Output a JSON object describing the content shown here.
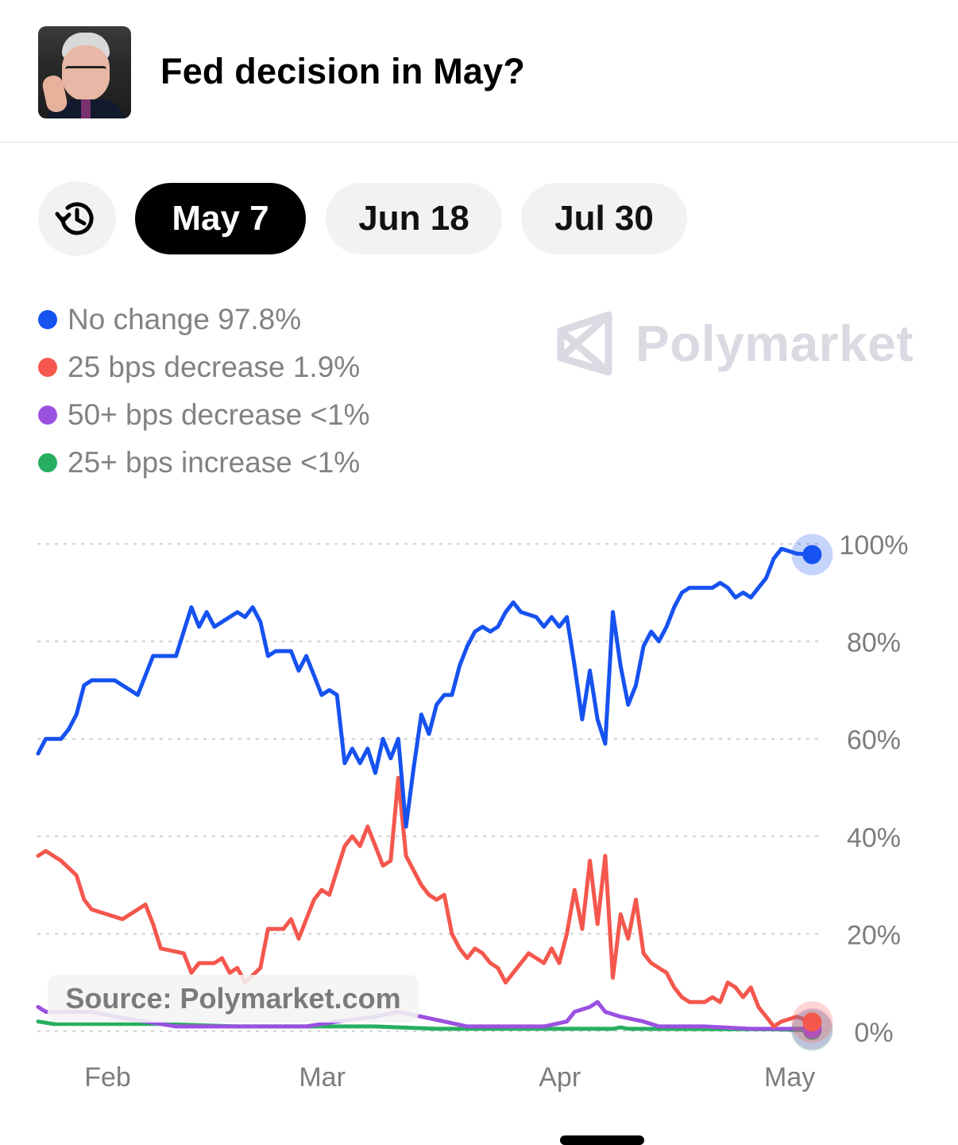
{
  "header": {
    "title": "Fed decision in May?"
  },
  "tabs": [
    {
      "label": "May 7",
      "active": true
    },
    {
      "label": "Jun 18",
      "active": false
    },
    {
      "label": "Jul 30",
      "active": false
    }
  ],
  "icons": {
    "history": "history-clock-icon",
    "watermark": "polymarket-logo-icon"
  },
  "watermark": {
    "text": "Polymarket"
  },
  "source_label": "Source: Polymarket.com",
  "legend": [
    {
      "label": "No change 97.8%",
      "color": "#1652f0"
    },
    {
      "label": "25 bps decrease 1.9%",
      "color": "#f4574d"
    },
    {
      "label": "50+ bps decrease <1%",
      "color": "#9b51e0"
    },
    {
      "label": "25+ bps increase <1%",
      "color": "#27ae60"
    }
  ],
  "chart_data": {
    "type": "line",
    "title": "",
    "xlabel": "",
    "ylabel": "",
    "x_ticks": [
      "Feb",
      "Mar",
      "Apr",
      "May"
    ],
    "x_tick_dates": [
      "2025-02-01",
      "2025-03-01",
      "2025-04-01",
      "2025-05-01"
    ],
    "x_range": [
      "2025-01-25",
      "2025-05-07"
    ],
    "y_ticks": [
      "0%",
      "20%",
      "40%",
      "60%",
      "80%",
      "100%"
    ],
    "y_tick_values": [
      0,
      20,
      40,
      60,
      80,
      100
    ],
    "ylim": [
      0,
      100
    ],
    "grid": "horizontal-dotted",
    "series": [
      {
        "name": "No change",
        "color": "#1652f0",
        "end_value": 97.8,
        "points": [
          [
            "2025-01-25",
            57
          ],
          [
            "2025-01-26",
            60
          ],
          [
            "2025-01-28",
            60
          ],
          [
            "2025-01-29",
            62
          ],
          [
            "2025-01-30",
            65
          ],
          [
            "2025-01-31",
            71
          ],
          [
            "2025-02-01",
            72
          ],
          [
            "2025-02-04",
            72
          ],
          [
            "2025-02-05",
            71
          ],
          [
            "2025-02-06",
            70
          ],
          [
            "2025-02-07",
            69
          ],
          [
            "2025-02-08",
            73
          ],
          [
            "2025-02-09",
            77
          ],
          [
            "2025-02-12",
            77
          ],
          [
            "2025-02-13",
            82
          ],
          [
            "2025-02-14",
            87
          ],
          [
            "2025-02-15",
            83
          ],
          [
            "2025-02-16",
            86
          ],
          [
            "2025-02-17",
            83
          ],
          [
            "2025-02-19",
            85
          ],
          [
            "2025-02-20",
            86
          ],
          [
            "2025-02-21",
            85
          ],
          [
            "2025-02-22",
            87
          ],
          [
            "2025-02-23",
            84
          ],
          [
            "2025-02-24",
            77
          ],
          [
            "2025-02-25",
            78
          ],
          [
            "2025-02-27",
            78
          ],
          [
            "2025-02-28",
            74
          ],
          [
            "2025-03-01",
            77
          ],
          [
            "2025-03-02",
            73
          ],
          [
            "2025-03-03",
            69
          ],
          [
            "2025-03-04",
            70
          ],
          [
            "2025-03-05",
            69
          ],
          [
            "2025-03-06",
            55
          ],
          [
            "2025-03-07",
            58
          ],
          [
            "2025-03-08",
            55
          ],
          [
            "2025-03-09",
            58
          ],
          [
            "2025-03-10",
            53
          ],
          [
            "2025-03-11",
            60
          ],
          [
            "2025-03-12",
            56
          ],
          [
            "2025-03-13",
            60
          ],
          [
            "2025-03-14",
            42
          ],
          [
            "2025-03-15",
            54
          ],
          [
            "2025-03-16",
            65
          ],
          [
            "2025-03-17",
            61
          ],
          [
            "2025-03-18",
            67
          ],
          [
            "2025-03-19",
            69
          ],
          [
            "2025-03-20",
            69
          ],
          [
            "2025-03-21",
            75
          ],
          [
            "2025-03-22",
            79
          ],
          [
            "2025-03-23",
            82
          ],
          [
            "2025-03-24",
            83
          ],
          [
            "2025-03-25",
            82
          ],
          [
            "2025-03-26",
            83
          ],
          [
            "2025-03-27",
            86
          ],
          [
            "2025-03-28",
            88
          ],
          [
            "2025-03-29",
            86
          ],
          [
            "2025-03-31",
            85
          ],
          [
            "2025-04-01",
            83
          ],
          [
            "2025-04-02",
            85
          ],
          [
            "2025-04-03",
            83
          ],
          [
            "2025-04-04",
            85
          ],
          [
            "2025-04-05",
            75
          ],
          [
            "2025-04-06",
            64
          ],
          [
            "2025-04-07",
            74
          ],
          [
            "2025-04-08",
            64
          ],
          [
            "2025-04-09",
            59
          ],
          [
            "2025-04-10",
            86
          ],
          [
            "2025-04-11",
            75
          ],
          [
            "2025-04-12",
            67
          ],
          [
            "2025-04-13",
            71
          ],
          [
            "2025-04-14",
            79
          ],
          [
            "2025-04-15",
            82
          ],
          [
            "2025-04-16",
            80
          ],
          [
            "2025-04-17",
            83
          ],
          [
            "2025-04-18",
            87
          ],
          [
            "2025-04-19",
            90
          ],
          [
            "2025-04-20",
            91
          ],
          [
            "2025-04-23",
            91
          ],
          [
            "2025-04-24",
            92
          ],
          [
            "2025-04-25",
            91
          ],
          [
            "2025-04-26",
            89
          ],
          [
            "2025-04-27",
            90
          ],
          [
            "2025-04-28",
            89
          ],
          [
            "2025-04-29",
            91
          ],
          [
            "2025-04-30",
            93
          ],
          [
            "2025-05-01",
            97
          ],
          [
            "2025-05-02",
            99
          ],
          [
            "2025-05-04",
            98
          ],
          [
            "2025-05-06",
            97.8
          ]
        ]
      },
      {
        "name": "25 bps decrease",
        "color": "#f4574d",
        "end_value": 1.9,
        "points": [
          [
            "2025-01-25",
            36
          ],
          [
            "2025-01-26",
            37
          ],
          [
            "2025-01-28",
            35
          ],
          [
            "2025-01-30",
            32
          ],
          [
            "2025-01-31",
            27
          ],
          [
            "2025-02-01",
            25
          ],
          [
            "2025-02-03",
            24
          ],
          [
            "2025-02-05",
            23
          ],
          [
            "2025-02-06",
            24
          ],
          [
            "2025-02-08",
            26
          ],
          [
            "2025-02-09",
            22
          ],
          [
            "2025-02-10",
            17
          ],
          [
            "2025-02-13",
            16
          ],
          [
            "2025-02-14",
            12
          ],
          [
            "2025-02-15",
            14
          ],
          [
            "2025-02-17",
            14
          ],
          [
            "2025-02-18",
            15
          ],
          [
            "2025-02-19",
            12
          ],
          [
            "2025-02-20",
            13
          ],
          [
            "2025-02-21",
            10
          ],
          [
            "2025-02-23",
            13
          ],
          [
            "2025-02-24",
            21
          ],
          [
            "2025-02-26",
            21
          ],
          [
            "2025-02-27",
            23
          ],
          [
            "2025-02-28",
            19
          ],
          [
            "2025-03-01",
            23
          ],
          [
            "2025-03-02",
            27
          ],
          [
            "2025-03-03",
            29
          ],
          [
            "2025-03-04",
            28
          ],
          [
            "2025-03-05",
            33
          ],
          [
            "2025-03-06",
            38
          ],
          [
            "2025-03-07",
            40
          ],
          [
            "2025-03-08",
            38
          ],
          [
            "2025-03-09",
            42
          ],
          [
            "2025-03-10",
            38
          ],
          [
            "2025-03-11",
            34
          ],
          [
            "2025-03-12",
            35
          ],
          [
            "2025-03-13",
            52
          ],
          [
            "2025-03-14",
            36
          ],
          [
            "2025-03-15",
            33
          ],
          [
            "2025-03-16",
            30
          ],
          [
            "2025-03-17",
            28
          ],
          [
            "2025-03-18",
            27
          ],
          [
            "2025-03-19",
            28
          ],
          [
            "2025-03-20",
            20
          ],
          [
            "2025-03-21",
            17
          ],
          [
            "2025-03-22",
            15
          ],
          [
            "2025-03-23",
            17
          ],
          [
            "2025-03-24",
            16
          ],
          [
            "2025-03-25",
            14
          ],
          [
            "2025-03-26",
            13
          ],
          [
            "2025-03-27",
            10
          ],
          [
            "2025-03-28",
            12
          ],
          [
            "2025-03-29",
            14
          ],
          [
            "2025-03-30",
            16
          ],
          [
            "2025-03-31",
            15
          ],
          [
            "2025-04-01",
            14
          ],
          [
            "2025-04-02",
            17
          ],
          [
            "2025-04-03",
            14
          ],
          [
            "2025-04-04",
            20
          ],
          [
            "2025-04-05",
            29
          ],
          [
            "2025-04-06",
            21
          ],
          [
            "2025-04-07",
            35
          ],
          [
            "2025-04-08",
            22
          ],
          [
            "2025-04-09",
            36
          ],
          [
            "2025-04-10",
            11
          ],
          [
            "2025-04-11",
            24
          ],
          [
            "2025-04-12",
            19
          ],
          [
            "2025-04-13",
            27
          ],
          [
            "2025-04-14",
            16
          ],
          [
            "2025-04-15",
            14
          ],
          [
            "2025-04-16",
            13
          ],
          [
            "2025-04-17",
            12
          ],
          [
            "2025-04-18",
            9
          ],
          [
            "2025-04-19",
            7
          ],
          [
            "2025-04-20",
            6
          ],
          [
            "2025-04-22",
            6
          ],
          [
            "2025-04-23",
            7
          ],
          [
            "2025-04-24",
            6
          ],
          [
            "2025-04-25",
            10
          ],
          [
            "2025-04-26",
            9
          ],
          [
            "2025-04-27",
            7
          ],
          [
            "2025-04-28",
            9
          ],
          [
            "2025-04-29",
            5
          ],
          [
            "2025-04-30",
            3
          ],
          [
            "2025-05-01",
            1
          ],
          [
            "2025-05-02",
            2
          ],
          [
            "2025-05-04",
            3
          ],
          [
            "2025-05-06",
            1.9
          ]
        ]
      },
      {
        "name": "50+ bps decrease",
        "color": "#9b51e0",
        "end_value": 0.5,
        "points": [
          [
            "2025-01-25",
            5
          ],
          [
            "2025-01-26",
            4
          ],
          [
            "2025-01-28",
            4
          ],
          [
            "2025-02-01",
            4
          ],
          [
            "2025-02-04",
            3
          ],
          [
            "2025-02-08",
            2
          ],
          [
            "2025-02-12",
            1
          ],
          [
            "2025-02-18",
            1
          ],
          [
            "2025-02-24",
            1
          ],
          [
            "2025-03-01",
            1
          ],
          [
            "2025-03-05",
            2
          ],
          [
            "2025-03-10",
            3
          ],
          [
            "2025-03-13",
            4
          ],
          [
            "2025-03-16",
            3
          ],
          [
            "2025-03-19",
            2
          ],
          [
            "2025-03-22",
            1
          ],
          [
            "2025-03-26",
            1
          ],
          [
            "2025-04-01",
            1
          ],
          [
            "2025-04-04",
            2
          ],
          [
            "2025-04-05",
            4
          ],
          [
            "2025-04-07",
            5
          ],
          [
            "2025-04-08",
            6
          ],
          [
            "2025-04-09",
            4
          ],
          [
            "2025-04-11",
            3
          ],
          [
            "2025-04-14",
            2
          ],
          [
            "2025-04-16",
            1
          ],
          [
            "2025-04-22",
            1
          ],
          [
            "2025-04-28",
            0.5
          ],
          [
            "2025-05-06",
            0.5
          ]
        ]
      },
      {
        "name": "25+ bps increase",
        "color": "#27ae60",
        "end_value": 0.2,
        "points": [
          [
            "2025-01-25",
            2
          ],
          [
            "2025-01-27",
            1.5
          ],
          [
            "2025-02-10",
            1.5
          ],
          [
            "2025-02-20",
            1
          ],
          [
            "2025-03-10",
            1
          ],
          [
            "2025-03-18",
            0.5
          ],
          [
            "2025-04-10",
            0.5
          ],
          [
            "2025-04-11",
            0.8
          ],
          [
            "2025-04-12",
            0.5
          ],
          [
            "2025-05-01",
            0.4
          ],
          [
            "2025-05-06",
            0.2
          ]
        ]
      }
    ]
  }
}
